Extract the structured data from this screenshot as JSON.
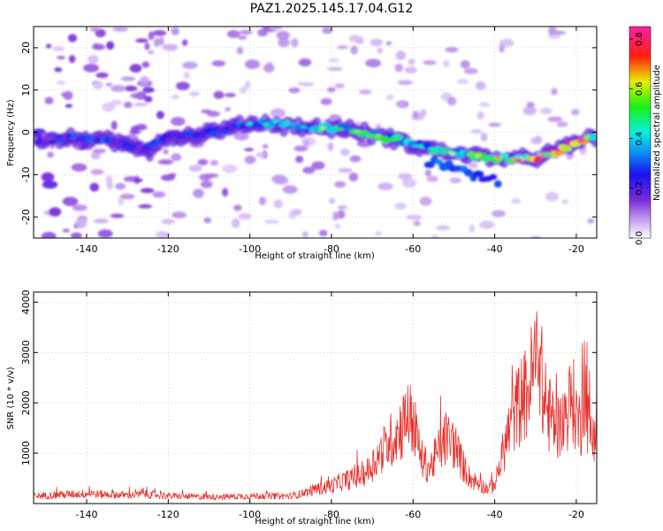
{
  "figure": {
    "title": "PAZ1.2025.145.17.04.G12"
  },
  "chart_data": [
    {
      "type": "heatmap",
      "title": "PAZ1.2025.145.17.04.G12",
      "xlabel": "Height of straight line (km)",
      "ylabel": "Frequency (Hz)",
      "xlim": [
        -153,
        -15
      ],
      "ylim": [
        -25,
        25
      ],
      "xticks": [
        -140,
        -120,
        -100,
        -80,
        -60,
        -40,
        -20
      ],
      "yticks": [
        -20,
        -10,
        0,
        10,
        20
      ],
      "colorbar": {
        "label": "Normalized spectral amplitude",
        "range": [
          0,
          0.85
        ],
        "ticks": [
          "0.0",
          "0.2",
          "0.4",
          "0.6",
          "0.8"
        ],
        "colormap": "rainbow (white-purple-blue-cyan-green-yellow-red-magenta)"
      },
      "ridge": {
        "name": "",
        "x": [
          -150,
          -145,
          -140,
          -135,
          -130,
          -125,
          -120,
          -115,
          -110,
          -105,
          -100,
          -95,
          -90,
          -85,
          -80,
          -75,
          -70,
          -65,
          -60,
          -55,
          -50,
          -45,
          -40,
          -35,
          -30,
          -25,
          -20,
          -16
        ],
        "y": [
          -2,
          -1.5,
          -1.5,
          -2,
          -3,
          -4,
          -1,
          -1,
          0,
          1,
          2,
          2,
          1.5,
          1,
          1,
          0.5,
          -0.5,
          -1.5,
          -3,
          -4,
          -5,
          -5.5,
          -6,
          -6.5,
          -6,
          -4.5,
          -2.5,
          -1
        ],
        "amplitude": [
          0.25,
          0.3,
          0.3,
          0.3,
          0.25,
          0.3,
          0.3,
          0.35,
          0.3,
          0.3,
          0.35,
          0.4,
          0.4,
          0.45,
          0.5,
          0.55,
          0.55,
          0.5,
          0.45,
          0.45,
          0.5,
          0.55,
          0.6,
          0.75,
          0.8,
          0.8,
          0.8,
          0.7
        ]
      },
      "grid": true
    },
    {
      "type": "line",
      "xlabel": "Height of straight line (km)",
      "ylabel": "SNR (10 * v/v)",
      "xlim": [
        -153,
        -15
      ],
      "ylim": [
        0,
        4200
      ],
      "xticks": [
        -140,
        -120,
        -100,
        -80,
        -60,
        -40,
        -20
      ],
      "yticks": [
        1000,
        2000,
        3000,
        4000
      ],
      "color": "#e8302c",
      "grid": true,
      "series": [
        {
          "name": "",
          "x": [
            -153,
            -145,
            -140,
            -135,
            -130,
            -125,
            -120,
            -115,
            -110,
            -105,
            -100,
            -95,
            -90,
            -87,
            -84,
            -80,
            -77,
            -74,
            -71,
            -69,
            -67,
            -65,
            -63,
            -61,
            -60,
            -58,
            -56,
            -54,
            -52,
            -50,
            -48,
            -46,
            -44,
            -42,
            -40,
            -38,
            -36,
            -34,
            -32,
            -30,
            -29,
            -28,
            -26,
            -24,
            -22,
            -21,
            -20,
            -19,
            -18,
            -17,
            -16,
            -15
          ],
          "y": [
            150,
            180,
            200,
            180,
            170,
            180,
            150,
            140,
            130,
            140,
            150,
            150,
            150,
            200,
            280,
            350,
            450,
            520,
            650,
            900,
            1100,
            1300,
            1500,
            1700,
            1650,
            900,
            700,
            1000,
            1300,
            1200,
            800,
            500,
            400,
            300,
            350,
            1000,
            1600,
            2000,
            2200,
            2800,
            3200,
            1900,
            1700,
            1500,
            1900,
            2100,
            1800,
            1500,
            2500,
            1500,
            1300,
            1800
          ]
        }
      ]
    }
  ]
}
